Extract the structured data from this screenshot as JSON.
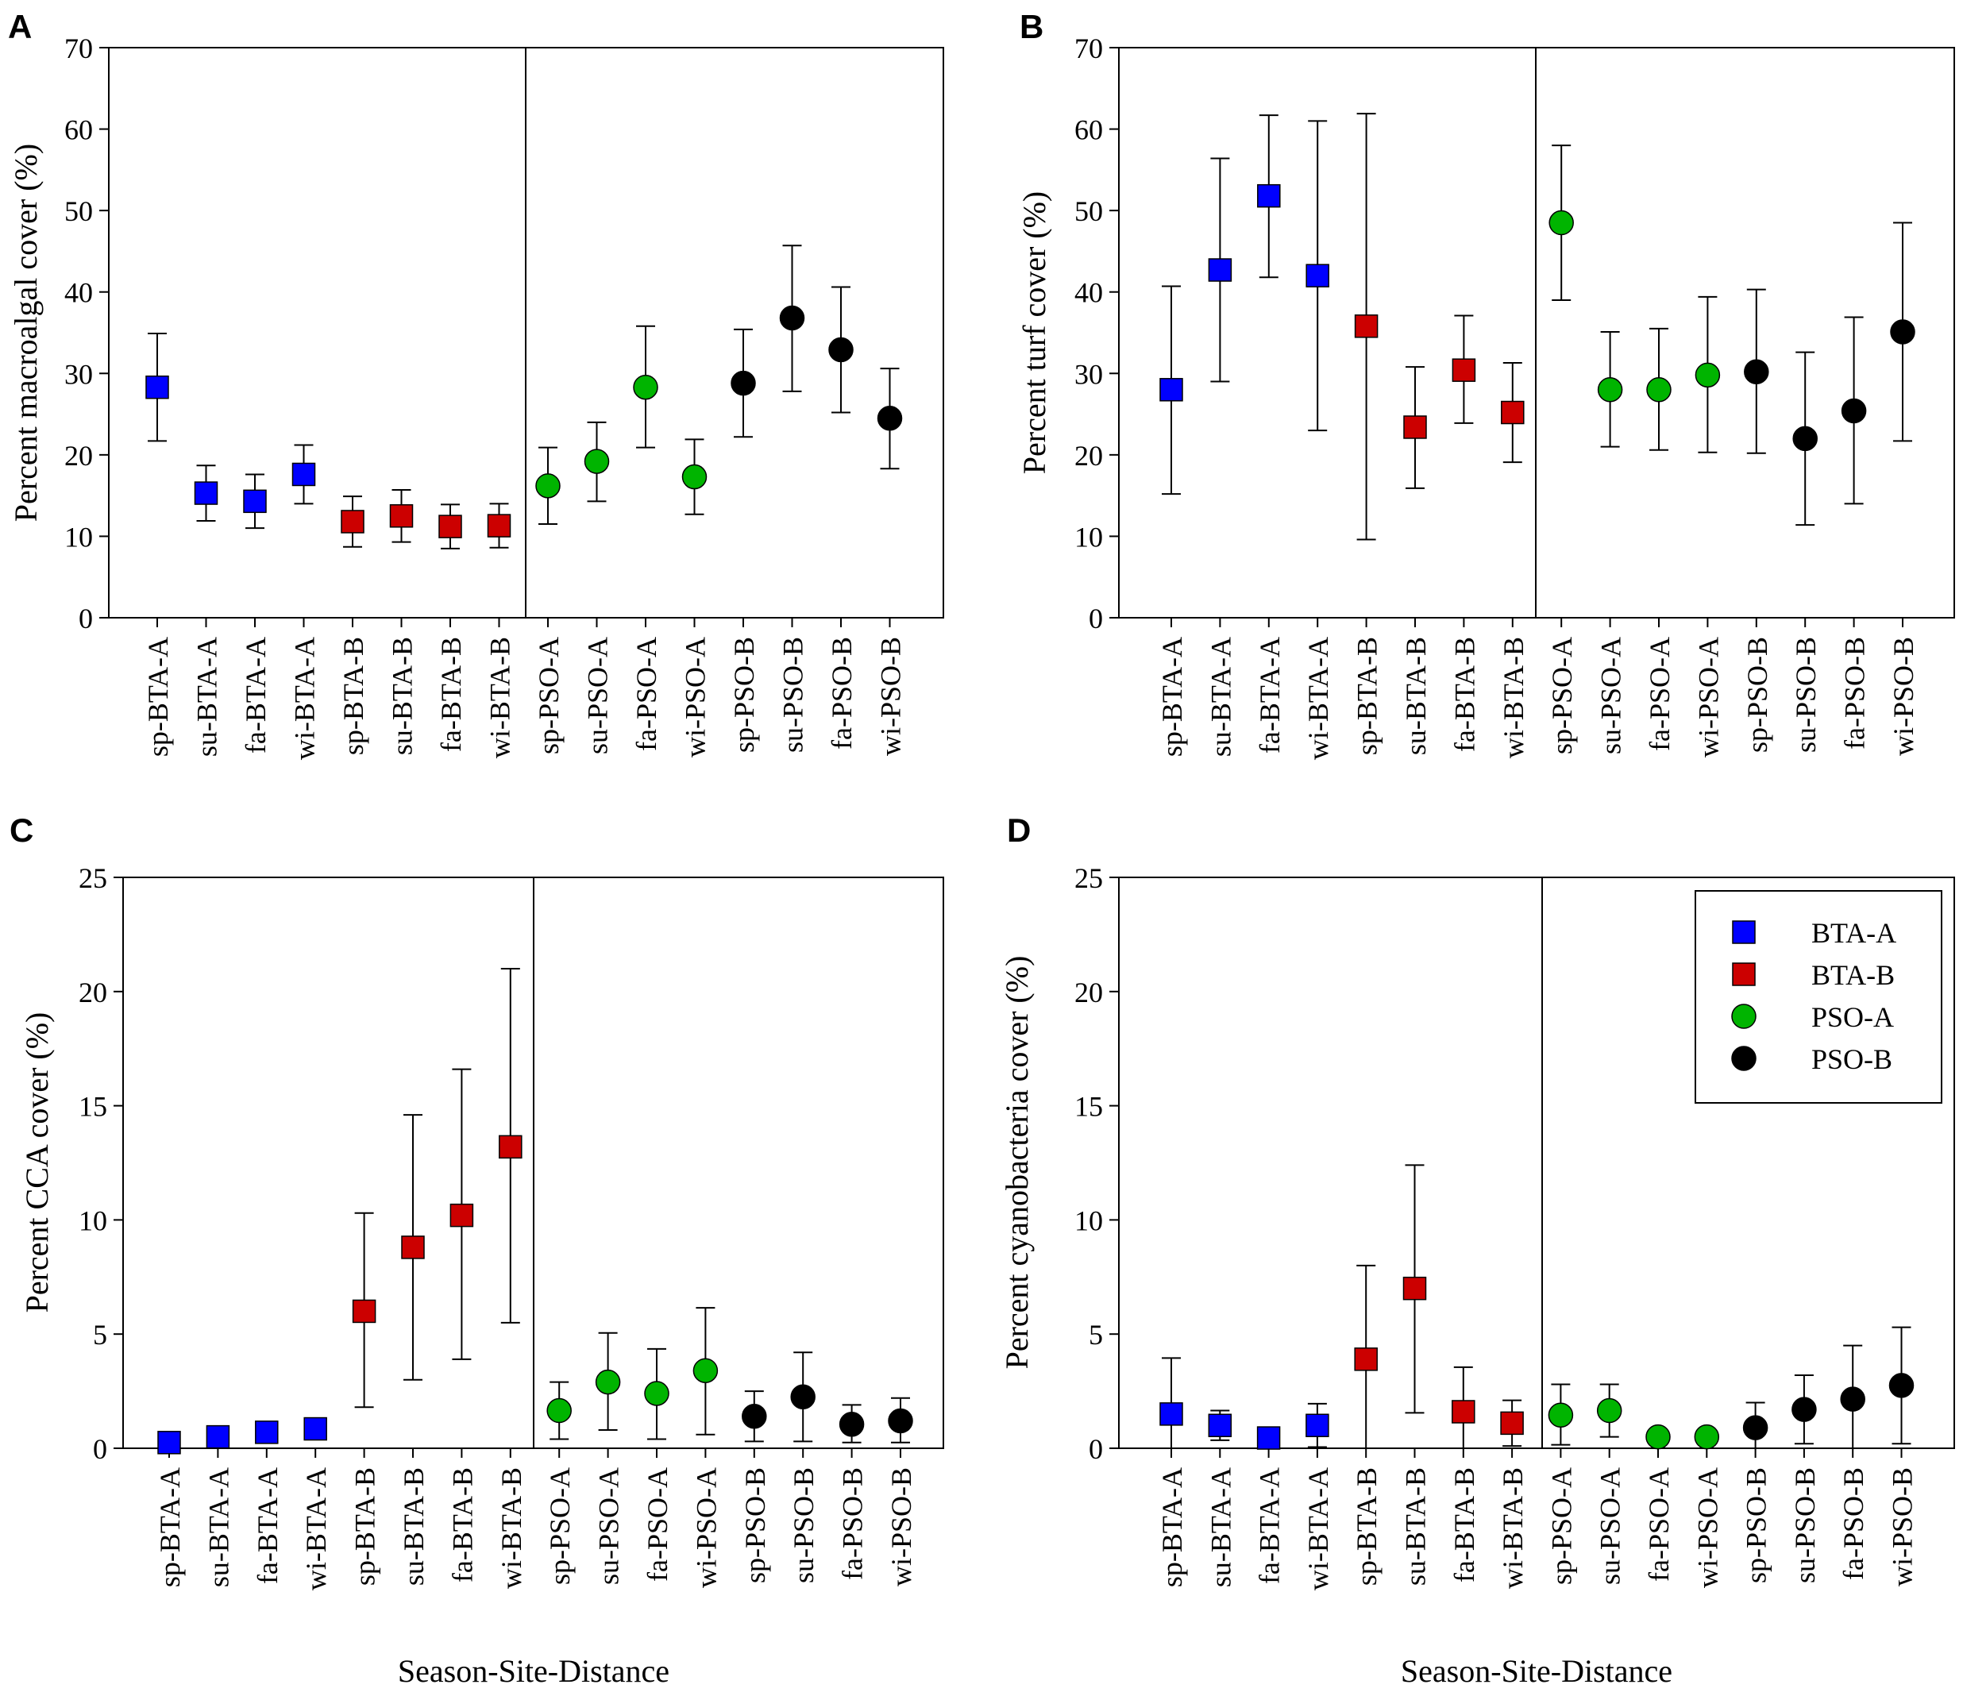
{
  "figure": {
    "xlabel": "Season-Site-Distance"
  },
  "categories": [
    "sp-BTA-A",
    "su-BTA-A",
    "fa-BTA-A",
    "wi-BTA-A",
    "sp-BTA-B",
    "su-BTA-B",
    "fa-BTA-B",
    "wi-BTA-B",
    "sp-PSO-A",
    "su-PSO-A",
    "fa-PSO-A",
    "wi-PSO-A",
    "sp-PSO-B",
    "su-PSO-B",
    "fa-PSO-B",
    "wi-PSO-B"
  ],
  "groups": [
    {
      "name": "BTA-A",
      "color": "#0000ff",
      "marker": "square"
    },
    {
      "name": "BTA-B",
      "color": "#cc0000",
      "marker": "square"
    },
    {
      "name": "PSO-A",
      "color": "#00b400",
      "marker": "circle"
    },
    {
      "name": "PSO-B",
      "color": "#000000",
      "marker": "circle"
    }
  ],
  "legend": {
    "entries": [
      "BTA-A",
      "BTA-B",
      "PSO-A",
      "PSO-B"
    ],
    "panel": "D",
    "placement": "top-right"
  },
  "chart_data": [
    {
      "type": "scatter",
      "label": "A",
      "ylabel": "Percent macroalgal cover (%)",
      "xlabel": "",
      "ylim": [
        0,
        70
      ],
      "yticks": [
        0,
        10,
        20,
        30,
        40,
        50,
        60,
        70
      ],
      "values": [
        28.3,
        15.3,
        14.3,
        17.6,
        11.8,
        12.5,
        11.2,
        11.3,
        16.2,
        19.2,
        28.3,
        17.3,
        28.8,
        36.8,
        32.9,
        24.5
      ],
      "err_low": [
        21.7,
        11.9,
        11.0,
        14.0,
        8.7,
        9.3,
        8.5,
        8.6,
        11.5,
        14.3,
        20.9,
        12.7,
        22.2,
        27.8,
        25.2,
        18.3
      ],
      "err_high": [
        34.9,
        18.7,
        17.6,
        21.2,
        14.9,
        15.7,
        13.9,
        14.0,
        20.9,
        24.0,
        35.8,
        21.9,
        35.4,
        45.7,
        40.6,
        30.6
      ]
    },
    {
      "type": "scatter",
      "label": "B",
      "ylabel": "Percent turf cover (%)",
      "xlabel": "",
      "ylim": [
        0,
        70
      ],
      "yticks": [
        0,
        10,
        20,
        30,
        40,
        50,
        60,
        70
      ],
      "values": [
        28.0,
        42.7,
        51.8,
        42.0,
        35.8,
        23.4,
        30.4,
        25.2,
        48.5,
        28.0,
        28.0,
        29.8,
        30.2,
        22.0,
        25.4,
        35.1
      ],
      "err_low": [
        15.2,
        29.0,
        41.8,
        23.0,
        9.6,
        15.9,
        23.9,
        19.1,
        39.0,
        21.0,
        20.6,
        20.3,
        20.2,
        11.4,
        14.0,
        21.7
      ],
      "err_high": [
        40.7,
        56.4,
        61.7,
        61.0,
        61.9,
        30.8,
        37.1,
        31.3,
        58.0,
        35.1,
        35.5,
        39.4,
        40.3,
        32.6,
        36.9,
        48.5
      ]
    },
    {
      "type": "scatter",
      "label": "C",
      "ylabel": "Percent CCA cover (%)",
      "xlabel": "Season-Site-Distance",
      "ylim": [
        0,
        25
      ],
      "yticks": [
        0,
        5,
        10,
        15,
        20,
        25
      ],
      "values": [
        0.25,
        0.5,
        0.7,
        0.85,
        6.0,
        8.8,
        10.2,
        13.2,
        1.65,
        2.9,
        2.4,
        3.4,
        1.4,
        2.25,
        1.05,
        1.2
      ],
      "err_low": [
        0.05,
        0.2,
        0.35,
        0.5,
        1.8,
        3.0,
        3.9,
        5.5,
        0.4,
        0.8,
        0.4,
        0.6,
        0.3,
        0.3,
        0.25,
        0.25
      ],
      "err_high": [
        0.45,
        0.8,
        1.05,
        1.2,
        10.3,
        14.6,
        16.6,
        21.0,
        2.9,
        5.05,
        4.35,
        6.15,
        2.5,
        4.2,
        1.9,
        2.2
      ]
    },
    {
      "type": "scatter",
      "label": "D",
      "ylabel": "Percent cyanobacteria cover (%)",
      "xlabel": "Season-Site-Distance",
      "ylim": [
        0,
        25
      ],
      "yticks": [
        0,
        5,
        10,
        15,
        20,
        25
      ],
      "values": [
        1.5,
        1.0,
        0.45,
        1.0,
        3.9,
        7.0,
        1.6,
        1.1,
        1.45,
        1.65,
        0.5,
        0.5,
        0.9,
        1.7,
        2.15,
        2.75
      ],
      "err_low": [
        0.0,
        0.35,
        0.2,
        0.05,
        0.0,
        1.55,
        0.0,
        0.1,
        0.15,
        0.5,
        0.3,
        0.3,
        0.0,
        0.2,
        0.0,
        0.2
      ],
      "err_high": [
        3.95,
        1.65,
        0.7,
        1.95,
        8.0,
        12.4,
        3.55,
        2.1,
        2.8,
        2.8,
        0.7,
        0.7,
        2.0,
        3.2,
        4.5,
        5.3
      ]
    }
  ]
}
